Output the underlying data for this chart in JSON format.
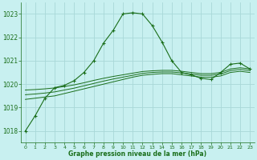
{
  "title": "Graphe pression niveau de la mer (hPa)",
  "bg_color": "#c8f0f0",
  "grid_color": "#a8d8d8",
  "line_color": "#1a6e1a",
  "xlim": [
    -0.5,
    23.5
  ],
  "ylim": [
    1017.5,
    1023.5
  ],
  "yticks": [
    1018,
    1019,
    1020,
    1021,
    1022,
    1023
  ],
  "xticks": [
    0,
    1,
    2,
    3,
    4,
    5,
    6,
    7,
    8,
    9,
    10,
    11,
    12,
    13,
    14,
    15,
    16,
    17,
    18,
    19,
    20,
    21,
    22,
    23
  ],
  "main_line": {
    "x": [
      0,
      1,
      2,
      3,
      4,
      5,
      6,
      7,
      8,
      9,
      10,
      11,
      12,
      13,
      14,
      15,
      16,
      17,
      18,
      19,
      20,
      21,
      22,
      23
    ],
    "y": [
      1018.0,
      1018.65,
      1019.4,
      1019.85,
      1019.95,
      1020.15,
      1020.5,
      1021.0,
      1021.75,
      1022.3,
      1023.0,
      1023.05,
      1023.0,
      1022.5,
      1021.8,
      1021.0,
      1020.5,
      1020.4,
      1020.25,
      1020.2,
      1020.5,
      1020.85,
      1020.9,
      1020.65
    ]
  },
  "flat_line1": {
    "x": [
      0,
      1,
      2,
      3,
      4,
      5,
      6,
      7,
      8,
      9,
      10,
      11,
      12,
      13,
      14,
      15,
      16,
      17,
      18,
      19,
      20,
      21,
      22,
      23
    ],
    "y": [
      1019.35,
      1019.4,
      1019.45,
      1019.5,
      1019.6,
      1019.7,
      1019.8,
      1019.9,
      1020.0,
      1020.1,
      1020.2,
      1020.3,
      1020.38,
      1020.42,
      1020.45,
      1020.45,
      1020.4,
      1020.35,
      1020.3,
      1020.3,
      1020.35,
      1020.5,
      1020.55,
      1020.5
    ]
  },
  "flat_line2": {
    "x": [
      0,
      1,
      2,
      3,
      4,
      5,
      6,
      7,
      8,
      9,
      10,
      11,
      12,
      13,
      14,
      15,
      16,
      17,
      18,
      19,
      20,
      21,
      22,
      23
    ],
    "y": [
      1019.55,
      1019.58,
      1019.62,
      1019.67,
      1019.75,
      1019.83,
      1019.93,
      1020.03,
      1020.13,
      1020.22,
      1020.3,
      1020.38,
      1020.46,
      1020.5,
      1020.52,
      1020.52,
      1020.48,
      1020.43,
      1020.38,
      1020.38,
      1020.43,
      1020.58,
      1020.63,
      1020.58
    ]
  },
  "flat_line3": {
    "x": [
      0,
      1,
      2,
      3,
      4,
      5,
      6,
      7,
      8,
      9,
      10,
      11,
      12,
      13,
      14,
      15,
      16,
      17,
      18,
      19,
      20,
      21,
      22,
      23
    ],
    "y": [
      1019.75,
      1019.77,
      1019.8,
      1019.84,
      1019.9,
      1019.97,
      1020.06,
      1020.16,
      1020.25,
      1020.33,
      1020.4,
      1020.47,
      1020.54,
      1020.57,
      1020.59,
      1020.59,
      1020.55,
      1020.5,
      1020.45,
      1020.45,
      1020.5,
      1020.65,
      1020.7,
      1020.65
    ]
  }
}
